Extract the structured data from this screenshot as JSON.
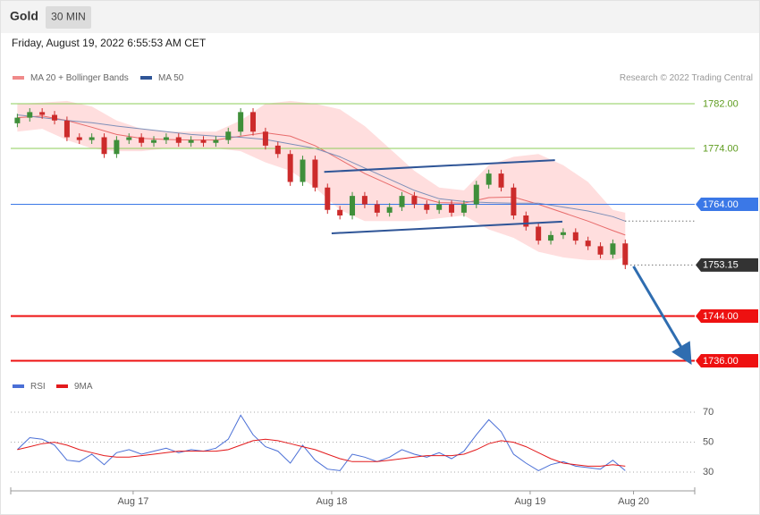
{
  "header": {
    "title": "Gold",
    "timeframe": "30 MIN",
    "timestamp": "Friday, August 19, 2022 6:55:53 AM CET"
  },
  "chart_data": [
    {
      "type": "candlestick",
      "annotation": "Research © 2022 Trading Central",
      "xlim": [
        -14.8,
        67.9
      ],
      "ylim": [
        1734,
        1784.4
      ],
      "candles": {
        "up_color": "#3f8f3a",
        "down_color": "#cc2b2b",
        "x": [
          -14,
          -12.5,
          -11,
          -9.5,
          -8,
          -6.5,
          -5,
          -3.5,
          -2,
          -0.5,
          1,
          2.5,
          4,
          5.5,
          7,
          8.5,
          10,
          11.5,
          13,
          14.5,
          16,
          17.5,
          19,
          20.5,
          22,
          23.5,
          25,
          26.5,
          28,
          29.5,
          31,
          32.5,
          34,
          35.5,
          37,
          38.5,
          40,
          41.5,
          43,
          44.5,
          46,
          47.5,
          49,
          50.5,
          52,
          53.5,
          55,
          56.5,
          58,
          59.5
        ],
        "open": [
          1778.5,
          1779.5,
          1780.5,
          1780,
          1779,
          1776,
          1775.5,
          1776,
          1773,
          1775.5,
          1776,
          1775,
          1775.5,
          1776,
          1775,
          1775.5,
          1775,
          1775.5,
          1777,
          1780.5,
          1777,
          1774.5,
          1773,
          1768,
          1772,
          1767,
          1763,
          1762,
          1765.5,
          1764,
          1762.5,
          1763.5,
          1765.5,
          1764,
          1763,
          1764,
          1762.5,
          1764,
          1767.5,
          1769.5,
          1767,
          1762,
          1760,
          1757.5,
          1758.5,
          1759,
          1757.5,
          1756.5,
          1755,
          1757
        ],
        "high": [
          1780.2,
          1781.2,
          1781.2,
          1780.7,
          1779.7,
          1776.7,
          1776.7,
          1776.7,
          1776.2,
          1776.7,
          1776.7,
          1776.2,
          1776.7,
          1776.7,
          1776.2,
          1776.2,
          1776.2,
          1777.7,
          1781.2,
          1781.2,
          1777.7,
          1775.2,
          1773.7,
          1772.7,
          1772.7,
          1767.7,
          1763.7,
          1766.2,
          1766.2,
          1764.7,
          1764.2,
          1766.2,
          1766.2,
          1764.7,
          1764.7,
          1764.7,
          1764.7,
          1768.2,
          1770.2,
          1770.2,
          1767.7,
          1762.7,
          1760.7,
          1759.2,
          1759.7,
          1759.7,
          1758.2,
          1757.2,
          1757.7,
          1757.7
        ],
        "low": [
          1777.8,
          1778.8,
          1779.3,
          1778.3,
          1775.3,
          1774.8,
          1774.8,
          1772.3,
          1772.3,
          1774.8,
          1774.3,
          1774.3,
          1774.8,
          1774.3,
          1774.3,
          1774.3,
          1774.3,
          1774.8,
          1776.3,
          1776.3,
          1773.8,
          1772.3,
          1767.3,
          1767.3,
          1766.3,
          1762.3,
          1761.3,
          1761.3,
          1763.3,
          1761.8,
          1761.8,
          1762.8,
          1763.3,
          1762.3,
          1762.3,
          1761.8,
          1761.8,
          1763.3,
          1766.8,
          1766.3,
          1761.3,
          1759.3,
          1756.8,
          1756.8,
          1757.8,
          1756.8,
          1755.8,
          1754.3,
          1754.3,
          1752.4
        ],
        "close": [
          1779.5,
          1780.5,
          1780,
          1779,
          1776,
          1775.5,
          1776,
          1773,
          1775.5,
          1776,
          1775,
          1775.5,
          1776,
          1775,
          1775.5,
          1775,
          1775.5,
          1777,
          1780.5,
          1777,
          1774.5,
          1773,
          1768,
          1772,
          1767,
          1763,
          1762,
          1765.5,
          1764,
          1762.5,
          1763.5,
          1765.5,
          1764,
          1763,
          1764,
          1762.5,
          1764,
          1767.5,
          1769.5,
          1767,
          1762,
          1760,
          1757.5,
          1758.5,
          1759,
          1757.5,
          1756.5,
          1755,
          1757,
          1753.15
        ]
      },
      "series_x": [
        -14,
        -11,
        -8,
        -5,
        -2,
        1,
        4,
        7,
        10,
        13,
        16,
        19,
        22,
        25,
        28,
        31,
        34,
        37,
        40,
        43,
        46,
        49,
        52,
        55,
        58,
        59.5
      ],
      "series": [
        {
          "name": "MA 20 + Bollinger Bands",
          "color": "#f08a8a",
          "line_color": "#e86b6b",
          "band_color": "#ffdede",
          "values": [
            1779.5,
            1779.8,
            1779,
            1777.8,
            1776.5,
            1775.8,
            1775.6,
            1775.5,
            1775.5,
            1776.2,
            1776.8,
            1776.2,
            1774.5,
            1772,
            1769.5,
            1767.5,
            1765.5,
            1764.3,
            1764.2,
            1765.2,
            1765.3,
            1764,
            1762.5,
            1761,
            1759.3,
            1758.5
          ],
          "upper": [
            1782,
            1782.2,
            1782.5,
            1781.5,
            1779,
            1777.5,
            1777,
            1777,
            1777,
            1779,
            1782,
            1782.5,
            1782,
            1781,
            1778,
            1774,
            1770,
            1767,
            1766.5,
            1771,
            1772.5,
            1773,
            1771,
            1768,
            1763,
            1762.5
          ],
          "lower": [
            1777,
            1777.5,
            1775.5,
            1774,
            1773.5,
            1773.5,
            1774,
            1774,
            1774,
            1773.5,
            1771.5,
            1770,
            1767,
            1763,
            1761,
            1761,
            1761,
            1761.5,
            1762,
            1759.5,
            1758,
            1755.5,
            1754.5,
            1754,
            1754,
            1754.5
          ]
        },
        {
          "name": "MA 50",
          "color": "#2f5597",
          "line_color": "#7d8fb8",
          "extend": true,
          "values": [
            1780,
            1779.5,
            1779,
            1778.6,
            1778,
            1777.5,
            1777,
            1776.5,
            1776.2,
            1776,
            1775.6,
            1774.8,
            1774,
            1772.5,
            1770.5,
            1768.5,
            1766.5,
            1765,
            1764.5,
            1764.3,
            1764.2,
            1764.2,
            1763.5,
            1762.8,
            1761.8,
            1761
          ]
        }
      ],
      "trend_lines": [
        {
          "color": "#2f5597",
          "x": [
            23.1,
            51.0
          ],
          "y": [
            1769.8,
            1771.9
          ],
          "arrow": false
        },
        {
          "color": "#2f5597",
          "x": [
            24.0,
            51.9
          ],
          "y": [
            1758.8,
            1760.9
          ],
          "arrow": false
        },
        {
          "color": "#2f6db0",
          "x": [
            60.5,
            67.2
          ],
          "y": [
            1752.9,
            1736.1
          ],
          "arrow": true
        }
      ],
      "levels": [
        {
          "value": 1782,
          "label": "1782.00",
          "color": "#8ccc5a",
          "text_color": "#5e9c1f",
          "box": false,
          "width": 1
        },
        {
          "value": 1774,
          "label": "1774.00",
          "color": "#8ccc5a",
          "text_color": "#5e9c1f",
          "box": false,
          "width": 1
        },
        {
          "value": 1764,
          "label": "1764.00",
          "color": "#3b78e7",
          "text_color": "#ffffff",
          "box": true,
          "width": 1
        },
        {
          "value": 1753.15,
          "color": "#333333",
          "text_color": "#ffffff",
          "box": true,
          "width": 1,
          "dotted": true
        },
        {
          "value": 1744,
          "label": "1744.00",
          "color": "#ee1111",
          "text_color": "#ffffff",
          "box": true,
          "width": 2
        },
        {
          "value": 1736,
          "label": "1736.00",
          "color": "#ee1111",
          "text_color": "#ffffff",
          "box": true,
          "width": 2
        }
      ]
    },
    {
      "type": "line",
      "xlim": [
        -14.8,
        67.9
      ],
      "ylim": [
        17.5,
        76
      ],
      "yticks": [
        70,
        50,
        30
      ],
      "xticks": [
        {
          "value": 0,
          "label": "Aug 17"
        },
        {
          "value": 24,
          "label": "Aug 18"
        },
        {
          "value": 48,
          "label": "Aug 19"
        },
        {
          "value": 60.5,
          "label": "Aug 20"
        }
      ],
      "x": [
        -14,
        -12.5,
        -11,
        -9.5,
        -8,
        -6.5,
        -5,
        -3.5,
        -2,
        -0.5,
        1,
        2.5,
        4,
        5.5,
        7,
        8.5,
        10,
        11.5,
        13,
        14.5,
        16,
        17.5,
        19,
        20.5,
        22,
        23.5,
        25,
        26.5,
        28,
        29.5,
        31,
        32.5,
        34,
        35.5,
        37,
        38.5,
        40,
        41.5,
        43,
        44.5,
        46,
        47.5,
        49,
        50.5,
        52,
        53.5,
        55,
        56.5,
        58,
        59.5
      ],
      "series": [
        {
          "name": "RSI",
          "color": "#4a6fd6",
          "values": [
            45,
            53,
            52,
            48,
            38,
            37,
            42,
            35,
            43,
            45,
            42,
            44,
            46,
            43,
            45,
            44,
            46,
            52,
            68,
            55,
            47,
            44,
            36,
            48,
            38,
            32,
            31,
            42,
            40,
            37,
            40,
            45,
            42,
            40,
            43,
            39,
            44,
            55,
            65,
            57,
            42,
            36,
            31,
            35,
            37,
            34,
            33,
            32,
            38,
            31
          ]
        },
        {
          "name": "9MA",
          "color": "#e31a1c",
          "values": [
            45,
            47,
            49,
            50,
            48,
            45,
            43,
            41,
            40,
            40,
            41,
            42,
            43,
            44,
            44,
            44,
            44,
            45,
            48,
            51,
            52,
            51,
            49,
            47,
            45,
            42,
            39,
            37,
            37,
            37,
            38,
            39,
            40,
            41,
            41,
            41,
            42,
            45,
            49,
            51,
            50,
            47,
            43,
            39,
            36,
            35,
            34,
            34,
            35,
            34
          ]
        }
      ]
    }
  ]
}
